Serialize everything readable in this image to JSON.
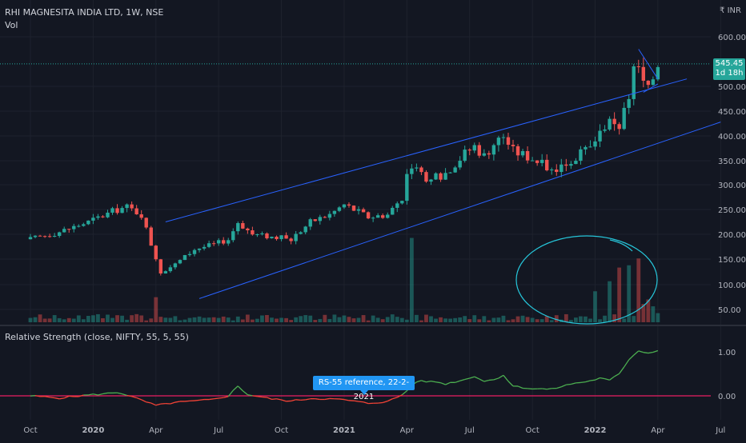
{
  "header": {
    "symbol_title": "RHI MAGNESITA INDIA LTD, 1W, NSE",
    "vol_label": "Vol",
    "currency": "INR"
  },
  "price_badge": {
    "price": "545.45",
    "countdown": "1d 18h"
  },
  "rs_panel": {
    "title": "Relative Strength (close, NIFTY, 55, 5, 55)",
    "annotation": "RS-55 reference, 22-2-2021"
  },
  "colors": {
    "background": "#131722",
    "up": "#26a69a",
    "down": "#ef5350",
    "channel": "#2962ff",
    "rs_positive": "#4caf50",
    "rs_negative": "#f44336",
    "zero_line": "#e91e63",
    "circle": "#26c6da",
    "badge": "#26a69a",
    "tooltip": "#2196f3"
  },
  "chart_data": [
    {
      "type": "candlestick",
      "title": "RHI MAGNESITA INDIA LTD, 1W, NSE",
      "ylim": [
        30,
        660
      ],
      "yticks": [
        50,
        100,
        150,
        200,
        250,
        300,
        350,
        400,
        450,
        500,
        600
      ],
      "last_price": 545.45,
      "x_labels": [
        "Oct",
        "2020",
        "Apr",
        "Jul",
        "Oct",
        "2021",
        "Apr",
        "Jul",
        "Oct",
        "2022",
        "Apr",
        "Jul"
      ],
      "x_label_bold": [
        "2020",
        "2021",
        "2022"
      ],
      "x_label_weeks": [
        0,
        13,
        26,
        39,
        52,
        65,
        78,
        91,
        104,
        117,
        130,
        143
      ],
      "price_anchors": [
        [
          0,
          190
        ],
        [
          6,
          205
        ],
        [
          12,
          225
        ],
        [
          18,
          250
        ],
        [
          20,
          255
        ],
        [
          23,
          240
        ],
        [
          25,
          180
        ],
        [
          27,
          125
        ],
        [
          30,
          140
        ],
        [
          34,
          170
        ],
        [
          38,
          180
        ],
        [
          41,
          190
        ],
        [
          43,
          225
        ],
        [
          46,
          200
        ],
        [
          50,
          195
        ],
        [
          54,
          190
        ],
        [
          58,
          225
        ],
        [
          62,
          240
        ],
        [
          65,
          260
        ],
        [
          67,
          250
        ],
        [
          70,
          235
        ],
        [
          74,
          240
        ],
        [
          77,
          275
        ],
        [
          78,
          320
        ],
        [
          80,
          330
        ],
        [
          82,
          305
        ],
        [
          86,
          325
        ],
        [
          90,
          365
        ],
        [
          92,
          380
        ],
        [
          94,
          360
        ],
        [
          96,
          385
        ],
        [
          98,
          400
        ],
        [
          100,
          370
        ],
        [
          104,
          355
        ],
        [
          108,
          330
        ],
        [
          112,
          350
        ],
        [
          116,
          375
        ],
        [
          118,
          405
        ],
        [
          120,
          440
        ],
        [
          122,
          420
        ],
        [
          124,
          470
        ],
        [
          125,
          540
        ],
        [
          126,
          530
        ],
        [
          128,
          490
        ],
        [
          130,
          545
        ]
      ],
      "big_volumes": [
        [
          26,
          55
        ],
        [
          79,
          185
        ],
        [
          117,
          68
        ],
        [
          120,
          90
        ],
        [
          122,
          120
        ],
        [
          124,
          125
        ],
        [
          126,
          140
        ],
        [
          127,
          40
        ],
        [
          128,
          50
        ],
        [
          129,
          35
        ],
        [
          130,
          20
        ]
      ],
      "channel_upper": [
        [
          28,
          225
        ],
        [
          136,
          515
        ]
      ],
      "channel_lower": [
        [
          35,
          72
        ],
        [
          143,
          428
        ]
      ],
      "wedge_upper": [
        [
          126,
          575
        ],
        [
          130,
          515
        ]
      ],
      "wedge_lower": [
        [
          127,
          488
        ],
        [
          130,
          505
        ]
      ]
    },
    {
      "type": "line",
      "title": "Relative Strength (close, NIFTY, 55, 5, 55)",
      "ylim": [
        -0.25,
        1.1
      ],
      "yticks": [
        0.0,
        1.0
      ],
      "zero_line": 0.0,
      "rs_anchors": [
        [
          0,
          0.0
        ],
        [
          6,
          -0.05
        ],
        [
          12,
          0.02
        ],
        [
          15,
          0.04
        ],
        [
          18,
          0.08
        ],
        [
          20,
          0.02
        ],
        [
          23,
          -0.1
        ],
        [
          26,
          -0.22
        ],
        [
          30,
          -0.15
        ],
        [
          34,
          -0.12
        ],
        [
          38,
          -0.08
        ],
        [
          41,
          0.0
        ],
        [
          43,
          0.22
        ],
        [
          45,
          0.03
        ],
        [
          50,
          -0.07
        ],
        [
          54,
          -0.12
        ],
        [
          58,
          -0.06
        ],
        [
          62,
          -0.07
        ],
        [
          65,
          -0.09
        ],
        [
          70,
          -0.17
        ],
        [
          74,
          -0.13
        ],
        [
          77,
          0.02
        ],
        [
          80,
          0.33
        ],
        [
          84,
          0.32
        ],
        [
          86,
          0.27
        ],
        [
          90,
          0.37
        ],
        [
          92,
          0.45
        ],
        [
          94,
          0.33
        ],
        [
          96,
          0.37
        ],
        [
          98,
          0.47
        ],
        [
          100,
          0.22
        ],
        [
          104,
          0.16
        ],
        [
          108,
          0.15
        ],
        [
          112,
          0.27
        ],
        [
          116,
          0.34
        ],
        [
          118,
          0.4
        ],
        [
          120,
          0.35
        ],
        [
          122,
          0.5
        ],
        [
          124,
          0.83
        ],
        [
          126,
          1.03
        ],
        [
          128,
          0.97
        ],
        [
          130,
          1.04
        ]
      ]
    }
  ]
}
